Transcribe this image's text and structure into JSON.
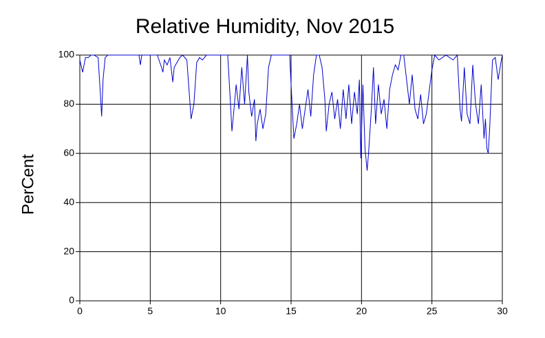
{
  "chart_data": {
    "type": "line",
    "title": "Relative Humidity, Nov 2015",
    "ylabel": "PerCent",
    "x": [
      0,
      0.2,
      0.4,
      0.6,
      0.8,
      1.0,
      1.3,
      1.45,
      1.55,
      1.65,
      1.8,
      2.0,
      3,
      4,
      4.2,
      4.3,
      4.4,
      4.6,
      5,
      5.5,
      5.8,
      5.9,
      6.0,
      6.2,
      6.4,
      6.6,
      6.7,
      6.9,
      7.1,
      7.3,
      7.6,
      7.8,
      7.9,
      8.0,
      8.1,
      8.3,
      8.5,
      8.7,
      9,
      9.5,
      10,
      10.5,
      10.7,
      10.8,
      10.9,
      11.1,
      11.3,
      11.5,
      11.7,
      11.9,
      12.0,
      12.2,
      12.4,
      12.5,
      12.6,
      12.8,
      13.0,
      13.2,
      13.4,
      13.6,
      14,
      14.5,
      14.9,
      15.0,
      15.2,
      15.4,
      15.6,
      15.8,
      16.0,
      16.2,
      16.4,
      16.6,
      16.8,
      17.0,
      17.2,
      17.4,
      17.5,
      17.7,
      17.9,
      18.1,
      18.3,
      18.5,
      18.7,
      18.9,
      19.1,
      19.3,
      19.5,
      19.7,
      19.85,
      19.95,
      20.1,
      20.25,
      20.4,
      20.5,
      20.7,
      20.85,
      21.0,
      21.2,
      21.4,
      21.6,
      21.8,
      22.0,
      22.2,
      22.4,
      22.6,
      22.8,
      23.0,
      23.2,
      23.4,
      23.6,
      23.8,
      24.0,
      24.2,
      24.4,
      24.6,
      24.8,
      25.0,
      25.2,
      25.5,
      26,
      26.5,
      26.8,
      27.0,
      27.1,
      27.3,
      27.5,
      27.7,
      27.9,
      28.1,
      28.3,
      28.5,
      28.7,
      28.8,
      28.9,
      29.0,
      29.1,
      29.3,
      29.5,
      29.7,
      29.9,
      30
    ],
    "series": [
      {
        "name": "Relative Humidity",
        "color": "#0000cc",
        "values": [
          98,
          93,
          99,
          99,
          100,
          100,
          99,
          85,
          75,
          90,
          99,
          100,
          100,
          100,
          100,
          96,
          100,
          100,
          100,
          100,
          95,
          93,
          98,
          96,
          99,
          89,
          95,
          97,
          99,
          100,
          98,
          82,
          74,
          77,
          80,
          97,
          99,
          98,
          100,
          100,
          100,
          100,
          80,
          69,
          75,
          88,
          78,
          95,
          80,
          100,
          85,
          75,
          82,
          65,
          72,
          78,
          70,
          76,
          95,
          100,
          100,
          100,
          100,
          88,
          66,
          72,
          80,
          70,
          78,
          86,
          75,
          92,
          100,
          100,
          95,
          82,
          69,
          80,
          85,
          74,
          82,
          70,
          86,
          74,
          88,
          72,
          85,
          76,
          90,
          58,
          88,
          62,
          53,
          60,
          78,
          95,
          72,
          88,
          76,
          82,
          70,
          86,
          92,
          96,
          94,
          100,
          100,
          90,
          80,
          92,
          78,
          74,
          84,
          72,
          76,
          85,
          94,
          100,
          98,
          100,
          98,
          100,
          78,
          73,
          95,
          76,
          72,
          96,
          80,
          72,
          88,
          66,
          74,
          62,
          60,
          70,
          98,
          99,
          90,
          97,
          100
        ]
      }
    ],
    "xlim": [
      0,
      30
    ],
    "xticks": [
      0,
      5,
      10,
      15,
      20,
      25,
      30
    ],
    "ylim": [
      0,
      100
    ],
    "yticks": [
      0,
      20,
      40,
      60,
      80,
      100
    ],
    "grid": true
  }
}
